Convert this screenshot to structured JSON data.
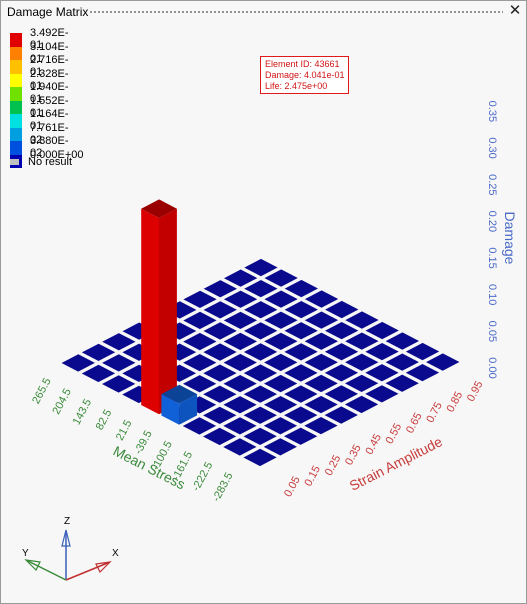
{
  "window": {
    "title": "Damage Matrix",
    "close_glyph": "✕"
  },
  "legend": {
    "labels": [
      "3.492E-01",
      "3.104E-01",
      "2.716E-01",
      "2.328E-01",
      "1.940E-01",
      "1.552E-01",
      "1.164E-01",
      "7.761E-02",
      "3.880E-02",
      "0.000E+00"
    ],
    "colors": [
      "#e00000",
      "#ff8000",
      "#ffc000",
      "#ffff00",
      "#70e000",
      "#00c050",
      "#00e0e0",
      "#00a0e0",
      "#0050e0",
      "#0000b0"
    ],
    "no_result_label": "No result",
    "no_result_color": "#c0c0c0"
  },
  "callout": {
    "lines": [
      "Element ID: 43661",
      "Damage: 4.041e-01",
      "Life: 2.475e+00"
    ]
  },
  "colors": {
    "cell": "#0a0a8e",
    "mean_axis": "#3b8a3b",
    "strain_axis": "#c83c3c",
    "damage_axis": "#4a6ac8"
  },
  "chart_data": {
    "type": "bar3d",
    "x_axis": {
      "label": "Strain Amplitude",
      "ticks": [
        "0.05",
        "0.15",
        "0.25",
        "0.35",
        "0.45",
        "0.55",
        "0.65",
        "0.75",
        "0.85",
        "0.95"
      ]
    },
    "y_axis": {
      "label": "Mean Stress",
      "ticks": [
        "265.5",
        "204.5",
        "143.5",
        "82.5",
        "21.5",
        "-39.5",
        "-100.5",
        "-161.5",
        "-222.5",
        "-283.5"
      ]
    },
    "z_axis": {
      "label": "Damage",
      "ticks": [
        "0.00",
        "0.05",
        "0.10",
        "0.15",
        "0.20",
        "0.25",
        "0.30",
        "0.35"
      ],
      "range": [
        0,
        0.35
      ]
    },
    "bars": [
      {
        "strain": "0.05",
        "mean_stress": "21.5",
        "damage": 0.3492,
        "color": "#dd0000"
      },
      {
        "strain": "0.05",
        "mean_stress": "-39.5",
        "damage": 0.038,
        "color": "#1060d8"
      }
    ]
  },
  "triad": {
    "x": "X",
    "y": "Y",
    "z": "Z"
  }
}
